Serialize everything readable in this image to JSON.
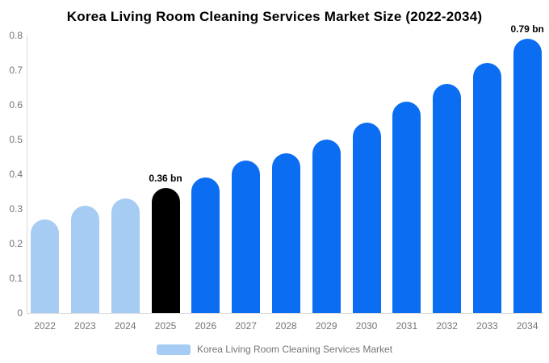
{
  "chart_data": {
    "type": "bar",
    "title": "Korea Living Room Cleaning Services Market Size (2022-2034)",
    "categories": [
      "2022",
      "2023",
      "2024",
      "2025",
      "2026",
      "2027",
      "2028",
      "2029",
      "2030",
      "2031",
      "2032",
      "2033",
      "2034"
    ],
    "values": [
      0.27,
      0.31,
      0.33,
      0.36,
      0.39,
      0.44,
      0.46,
      0.5,
      0.55,
      0.61,
      0.66,
      0.72,
      0.79
    ],
    "unit": "bn",
    "xlabel": "",
    "ylabel": "",
    "ylim": [
      0,
      0.8
    ],
    "y_tick_labels": [
      "0",
      "0.1",
      "0.2",
      "0.3",
      "0.4",
      "0.5",
      "0.6",
      "0.7",
      "0.8"
    ],
    "grid": false,
    "legend_position": "bottom",
    "legend": [
      "Korea Living Room Cleaning Services Market"
    ],
    "colors": {
      "historical_bar": "#a6ccf3",
      "base_year_bar": "#000000",
      "forecast_bar": "#0b6df2",
      "axis_line": "#d9d9d9",
      "tick_text": "#757575",
      "legend_text": "#757575",
      "title_text": "#000000"
    },
    "bar_colors": [
      "#a6ccf3",
      "#a6ccf3",
      "#a6ccf3",
      "#000000",
      "#0b6df2",
      "#0b6df2",
      "#0b6df2",
      "#0b6df2",
      "#0b6df2",
      "#0b6df2",
      "#0b6df2",
      "#0b6df2",
      "#0b6df2"
    ],
    "annotations": [
      {
        "category": "2025",
        "text": "0.36 bn"
      },
      {
        "category": "2034",
        "text": "0.79 bn"
      }
    ]
  }
}
